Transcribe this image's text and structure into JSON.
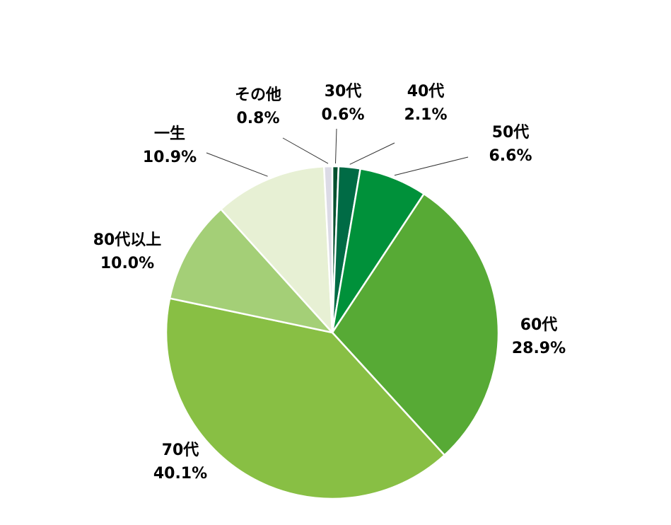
{
  "chart_data": {
    "type": "pie",
    "categories": [
      "30代",
      "40代",
      "50代",
      "60代",
      "70代",
      "80代以上",
      "一生",
      "その他"
    ],
    "values": [
      0.6,
      2.1,
      6.6,
      28.9,
      40.1,
      10.0,
      10.9,
      0.8
    ],
    "value_labels": [
      "0.6%",
      "2.1%",
      "6.6%",
      "28.9%",
      "40.1%",
      "10.0%",
      "10.9%",
      "0.8%"
    ],
    "colors": [
      "#00502e",
      "#006b45",
      "#00913a",
      "#57aa35",
      "#88bf44",
      "#a4cf77",
      "#e7f0d4",
      "#dcdbe6"
    ]
  }
}
